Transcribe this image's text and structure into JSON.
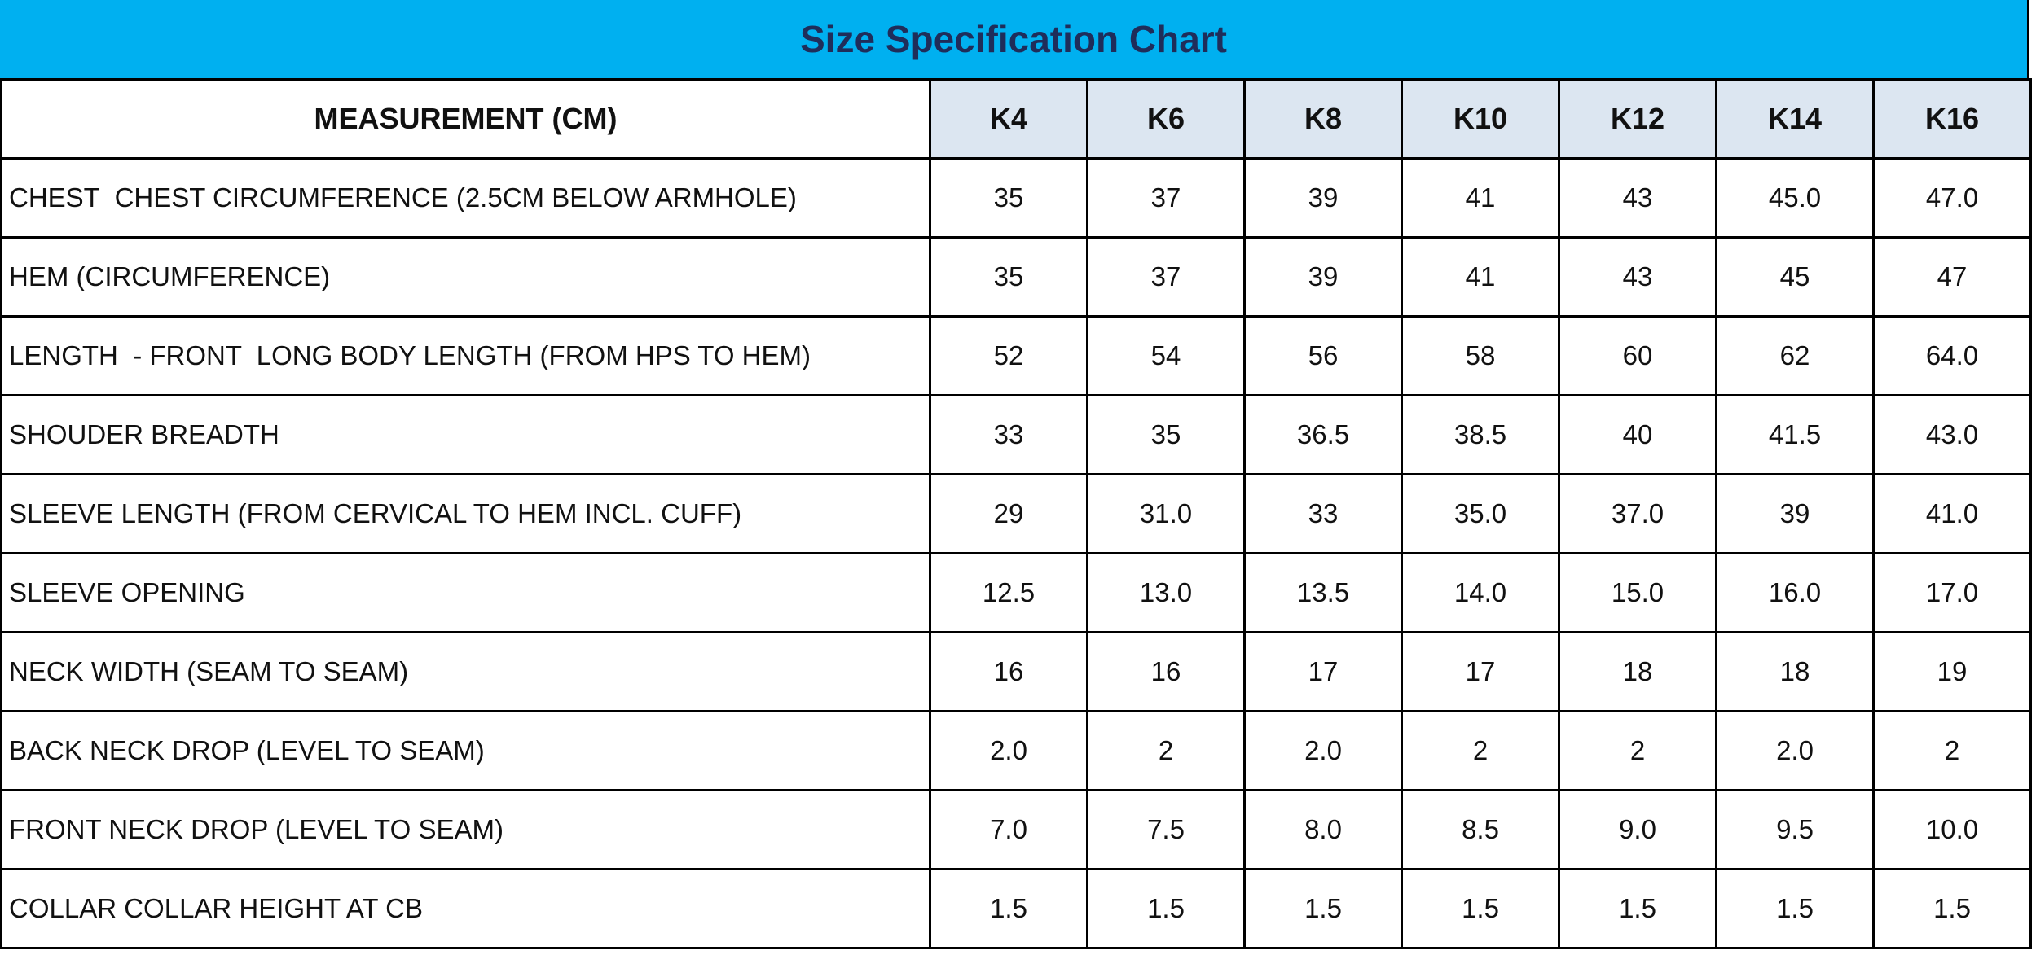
{
  "title": "Size Specification Chart",
  "table": {
    "header": [
      "MEASUREMENT (CM)",
      "K4",
      "K6",
      "K8",
      "K10",
      "K12",
      "K14",
      "K16"
    ],
    "rows": [
      [
        "CHEST  CHEST CIRCUMFERENCE (2.5CM BELOW ARMHOLE)",
        "35",
        "37",
        "39",
        "41",
        "43",
        "45.0",
        "47.0"
      ],
      [
        "HEM (CIRCUMFERENCE)",
        "35",
        "37",
        "39",
        "41",
        "43",
        "45",
        "47"
      ],
      [
        "LENGTH  - FRONT  LONG BODY LENGTH (FROM HPS TO HEM)",
        "52",
        "54",
        "56",
        "58",
        "60",
        "62",
        "64.0"
      ],
      [
        "SHOUDER BREADTH",
        "33",
        "35",
        "36.5",
        "38.5",
        "40",
        "41.5",
        "43.0"
      ],
      [
        "SLEEVE LENGTH (FROM CERVICAL TO HEM INCL. CUFF)",
        "29",
        "31.0",
        "33",
        "35.0",
        "37.0",
        "39",
        "41.0"
      ],
      [
        "SLEEVE OPENING",
        "12.5",
        "13.0",
        "13.5",
        "14.0",
        "15.0",
        "16.0",
        "17.0"
      ],
      [
        "NECK WIDTH (SEAM TO SEAM)",
        "16",
        "16",
        "17",
        "17",
        "18",
        "18",
        "19"
      ],
      [
        "BACK NECK DROP (LEVEL TO SEAM)",
        "2.0",
        "2",
        "2.0",
        "2",
        "2",
        "2.0",
        "2"
      ],
      [
        "FRONT NECK DROP (LEVEL TO SEAM)",
        "7.0",
        "7.5",
        "8.0",
        "8.5",
        "9.0",
        "9.5",
        "10.0"
      ],
      [
        "COLLAR COLLAR HEIGHT AT CB",
        "1.5",
        "1.5",
        "1.5",
        "1.5",
        "1.5",
        "1.5",
        "1.5"
      ]
    ]
  }
}
